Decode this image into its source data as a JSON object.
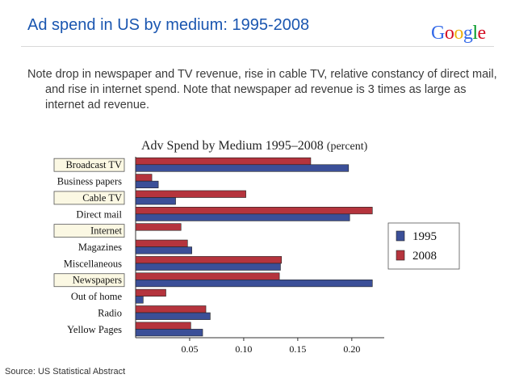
{
  "slide": {
    "title": "Ad spend in US by medium: 1995-2008",
    "note": "Note drop in newspaper and TV revenue, rise in cable TV, relative constancy of direct mail, and rise in internet spend.  Note that newspaper ad revenue is 3 times as large as internet ad revenue.",
    "source": "Source: US Statistical Abstract",
    "logo_text": "Google",
    "logo_colors": [
      "#3369e8",
      "#d50f25",
      "#eeb211",
      "#3369e8",
      "#009925",
      "#d50f25"
    ]
  },
  "chart_data": {
    "type": "bar",
    "orientation": "horizontal",
    "title": "Adv Spend by Medium 1995–2008",
    "title_suffix": "(percent)",
    "categories": [
      "Broadcast TV",
      "Business papers",
      "Cable TV",
      "Direct mail",
      "Internet",
      "Magazines",
      "Miscellaneous",
      "Newspapers",
      "Out of home",
      "Radio",
      "Yellow Pages"
    ],
    "highlighted_categories": [
      "Broadcast TV",
      "Cable TV",
      "Internet",
      "Newspapers"
    ],
    "series": [
      {
        "name": "1995",
        "color": "#3b4f98",
        "values": [
          0.197,
          0.021,
          0.037,
          0.198,
          0.0,
          0.052,
          0.134,
          0.219,
          0.007,
          0.069,
          0.062
        ]
      },
      {
        "name": "2008",
        "color": "#b5343d",
        "values": [
          0.162,
          0.015,
          0.102,
          0.219,
          0.042,
          0.048,
          0.135,
          0.133,
          0.028,
          0.065,
          0.051
        ]
      }
    ],
    "xlim": [
      0,
      0.23
    ],
    "xticks": [
      "0.05",
      "0.10",
      "0.15",
      "0.20"
    ],
    "xtick_values": [
      0.05,
      0.1,
      0.15,
      0.2
    ],
    "legend_position": "right",
    "xlabel": "",
    "ylabel": ""
  }
}
